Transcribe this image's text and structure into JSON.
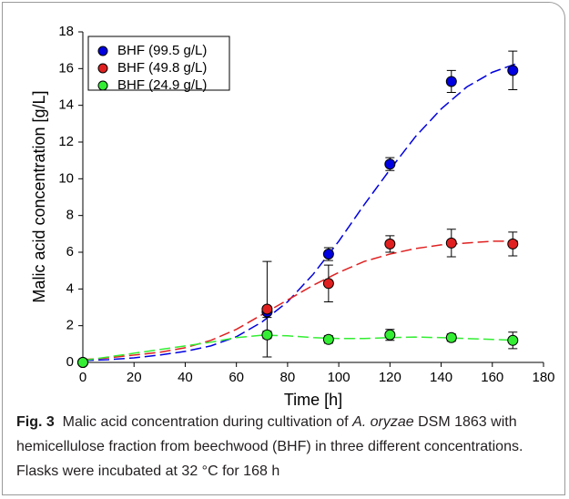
{
  "chart_data": {
    "type": "scatter",
    "xlabel": "Time [h]",
    "ylabel": "Malic acid concentration [g/L]",
    "xlim": [
      0,
      180
    ],
    "xticks": [
      0,
      20,
      40,
      60,
      80,
      100,
      120,
      140,
      160,
      180
    ],
    "ylim": [
      0,
      18
    ],
    "yticks": [
      0,
      2,
      4,
      6,
      8,
      10,
      12,
      14,
      16,
      18
    ],
    "legend": "upper left",
    "x": [
      0,
      72,
      96,
      120,
      144,
      168
    ],
    "fit_x": [
      0,
      10,
      20,
      30,
      40,
      50,
      60,
      70,
      80,
      90,
      100,
      110,
      120,
      130,
      140,
      150,
      160,
      170
    ],
    "series": [
      {
        "name": "BHF (99.5 g/L)",
        "color": "#0000e0",
        "values": [
          0,
          2.75,
          5.9,
          10.8,
          15.3,
          15.9
        ],
        "errors": [
          0,
          0.3,
          0.35,
          0.35,
          0.6,
          1.05
        ],
        "fit": [
          0.1,
          0.15,
          0.25,
          0.4,
          0.6,
          0.9,
          1.4,
          2.2,
          3.3,
          4.8,
          6.6,
          8.6,
          10.5,
          12.3,
          13.8,
          15.0,
          15.8,
          16.3
        ]
      },
      {
        "name": "BHF (49.8 g/L)",
        "color": "#e02020",
        "values": [
          0,
          2.9,
          4.3,
          6.45,
          6.5,
          6.45
        ],
        "errors": [
          0,
          2.6,
          1.0,
          0.45,
          0.75,
          0.65
        ],
        "fit": [
          0.15,
          0.25,
          0.4,
          0.55,
          0.8,
          1.2,
          1.8,
          2.6,
          3.4,
          4.2,
          4.9,
          5.5,
          5.9,
          6.2,
          6.4,
          6.5,
          6.6,
          6.6
        ]
      },
      {
        "name": "BHF (24.9 g/L)",
        "color": "#33ee33",
        "values": [
          0,
          1.5,
          1.25,
          1.5,
          1.35,
          1.2
        ],
        "errors": [
          0,
          0.2,
          0.2,
          0.3,
          0.2,
          0.45
        ],
        "fit": [
          0.1,
          0.3,
          0.5,
          0.7,
          0.9,
          1.1,
          1.35,
          1.48,
          1.45,
          1.35,
          1.3,
          1.3,
          1.35,
          1.38,
          1.35,
          1.3,
          1.25,
          1.2
        ]
      }
    ]
  },
  "caption": {
    "label": "Fig. 3",
    "parts": [
      "Malic acid concentration during cultivation of ",
      "A. oryzae",
      " DSM 1863 with hemicellulose fraction from beechwood (BHF) in three different concentrations. Flasks were incubated at 32 °C for 168 h"
    ]
  }
}
